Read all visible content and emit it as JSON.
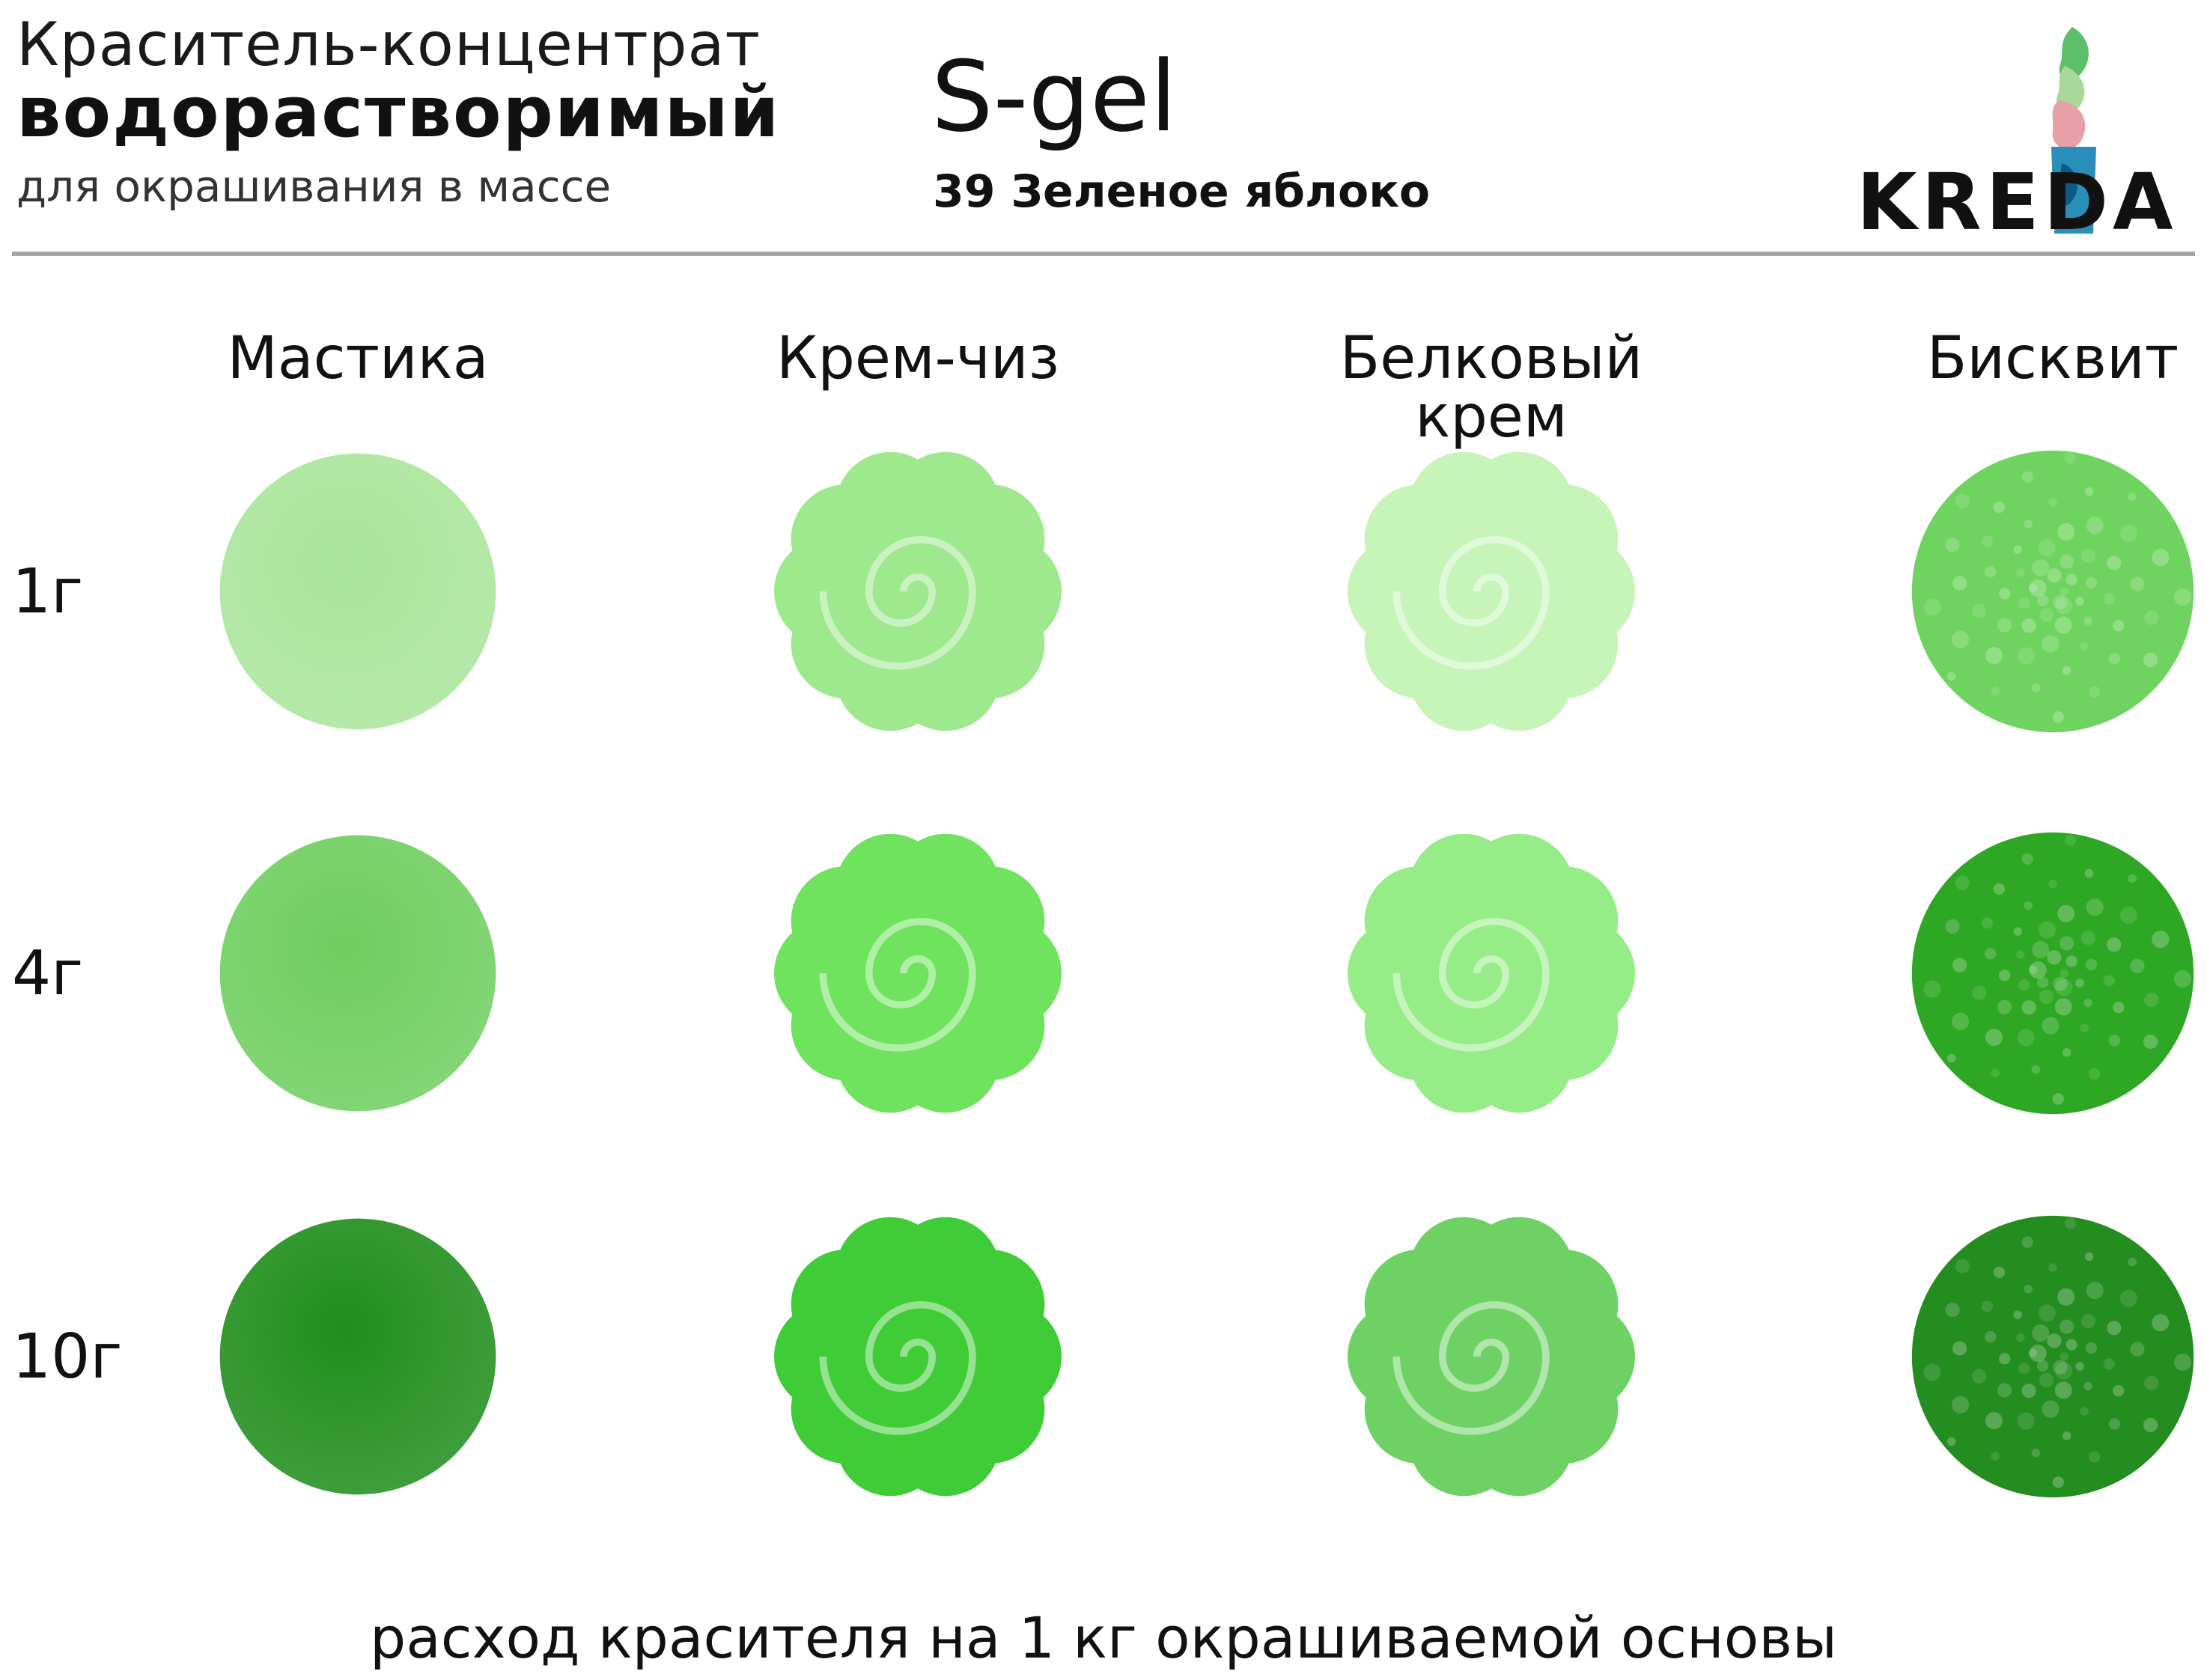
{
  "header": {
    "line1": "Краситель-концентрат",
    "line2": "водорастворимый",
    "line3": "для окрашивания в массе",
    "product": "S-gel",
    "color_name": "39 Зеленое яблоко"
  },
  "logo": {
    "text": "KREDA"
  },
  "columns": [
    {
      "label": "Мастика",
      "icon": "fondant-ball-icon"
    },
    {
      "label": "Крем-чиз",
      "icon": "cream-cheese-swirl-icon"
    },
    {
      "label": "Белковый крем",
      "icon": "meringue-swirl-icon"
    },
    {
      "label": "Бисквит",
      "icon": "sponge-cake-crumb-icon"
    }
  ],
  "rows": [
    {
      "label": "1г",
      "colors": [
        "#a9e59a",
        "#9ee88d",
        "#c6f4b9",
        "#6fd45f"
      ]
    },
    {
      "label": "4г",
      "colors": [
        "#6fce5f",
        "#6fe25e",
        "#96ec86",
        "#2ea824"
      ]
    },
    {
      "label": "10г",
      "colors": [
        "#1f8e1c",
        "#3fcc37",
        "#6dd263",
        "#248d20"
      ]
    }
  ],
  "footer": "расход красителя на 1 кг окрашиваемой основы",
  "colors": {
    "divider": "#a4a4a4",
    "accent": "#3fcc37"
  }
}
